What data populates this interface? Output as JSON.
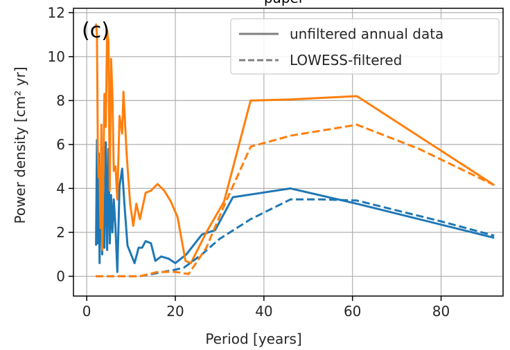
{
  "chart_data": {
    "type": "line",
    "title": "",
    "title_partial": "paper",
    "panel_label": "(c)",
    "xlabel": "Period [years]",
    "ylabel": "Power density [cm² yr]",
    "xlim": [
      -3,
      94
    ],
    "ylim": [
      -0.9,
      12.2
    ],
    "xticks": [
      0,
      20,
      40,
      60,
      80
    ],
    "yticks": [
      0,
      2,
      4,
      6,
      8,
      10,
      12
    ],
    "grid": true,
    "legend": {
      "placement": "top-right",
      "entries": [
        {
          "label": "unfiltered annual data",
          "style": "solid"
        },
        {
          "label": "LOWESS-filtered",
          "style": "dashed"
        }
      ]
    },
    "colors": {
      "blue": "#1f77b4",
      "orange": "#ff7f0e",
      "legend_line": "#7f7f7f",
      "grid": "#b0b0b0"
    },
    "series": [
      {
        "color": "blue",
        "style": "solid",
        "points": [
          [
            2.1,
            1.4
          ],
          [
            2.3,
            6.2
          ],
          [
            2.5,
            1.5
          ],
          [
            2.7,
            5.6
          ],
          [
            2.9,
            0.6
          ],
          [
            3.1,
            4.4
          ],
          [
            3.3,
            3.0
          ],
          [
            3.5,
            1.0
          ],
          [
            3.7,
            3.8
          ],
          [
            4.0,
            1.3
          ],
          [
            4.3,
            6.1
          ],
          [
            4.6,
            1.2
          ],
          [
            4.9,
            5.8
          ],
          [
            5.2,
            1.5
          ],
          [
            5.5,
            3.7
          ],
          [
            5.8,
            2.0
          ],
          [
            6.1,
            3.5
          ],
          [
            6.5,
            2.2
          ],
          [
            6.9,
            0.2
          ],
          [
            7.4,
            4.1
          ],
          [
            8.0,
            4.9
          ],
          [
            8.5,
            3.3
          ],
          [
            9.2,
            1.4
          ],
          [
            10.0,
            1.0
          ],
          [
            10.8,
            0.6
          ],
          [
            11.7,
            1.3
          ],
          [
            12.5,
            1.3
          ],
          [
            13.3,
            1.6
          ],
          [
            14.5,
            1.5
          ],
          [
            15.5,
            0.7
          ],
          [
            16.8,
            0.9
          ],
          [
            18.5,
            0.8
          ],
          [
            20.0,
            0.6
          ],
          [
            22.5,
            1.0
          ],
          [
            26.0,
            1.9
          ],
          [
            29.0,
            2.1
          ],
          [
            33.0,
            3.6
          ],
          [
            46.0,
            4.0
          ],
          [
            61.0,
            3.3
          ],
          [
            92.0,
            1.75
          ]
        ]
      },
      {
        "color": "orange",
        "style": "solid",
        "points": [
          [
            2.1,
            11.5
          ],
          [
            2.3,
            11.0
          ],
          [
            2.5,
            5.8
          ],
          [
            2.7,
            4.5
          ],
          [
            2.9,
            5.0
          ],
          [
            3.1,
            2.2
          ],
          [
            3.3,
            6.9
          ],
          [
            3.5,
            1.2
          ],
          [
            3.7,
            4.0
          ],
          [
            4.0,
            8.3
          ],
          [
            4.3,
            6.8
          ],
          [
            4.6,
            11.2
          ],
          [
            4.9,
            10.7
          ],
          [
            5.2,
            3.9
          ],
          [
            5.5,
            9.9
          ],
          [
            5.8,
            8.3
          ],
          [
            6.1,
            4.8
          ],
          [
            6.5,
            5.0
          ],
          [
            6.9,
            3.5
          ],
          [
            7.4,
            7.3
          ],
          [
            8.0,
            6.5
          ],
          [
            8.3,
            8.4
          ],
          [
            9.0,
            5.6
          ],
          [
            9.8,
            3.3
          ],
          [
            10.5,
            2.3
          ],
          [
            11.2,
            3.3
          ],
          [
            12.0,
            2.6
          ],
          [
            13.3,
            3.8
          ],
          [
            14.5,
            3.9
          ],
          [
            16.0,
            4.2
          ],
          [
            17.5,
            3.9
          ],
          [
            19.0,
            3.4
          ],
          [
            20.5,
            2.7
          ],
          [
            22.3,
            0.7
          ],
          [
            23.5,
            0.6
          ],
          [
            27.0,
            2.0
          ],
          [
            31.0,
            3.4
          ],
          [
            37.0,
            8.0
          ],
          [
            46.0,
            8.05
          ],
          [
            61.0,
            8.2
          ],
          [
            92.0,
            4.15
          ]
        ]
      },
      {
        "color": "blue",
        "style": "dashed",
        "points": [
          [
            2.0,
            0.0
          ],
          [
            8.0,
            0.0
          ],
          [
            12.0,
            0.0
          ],
          [
            16.0,
            0.15
          ],
          [
            20.0,
            0.3
          ],
          [
            22.0,
            0.4
          ],
          [
            26.0,
            1.0
          ],
          [
            30.0,
            1.7
          ],
          [
            37.0,
            2.6
          ],
          [
            46.0,
            3.5
          ],
          [
            53.0,
            3.5
          ],
          [
            61.0,
            3.45
          ],
          [
            70.0,
            3.0
          ],
          [
            80.0,
            2.5
          ],
          [
            92.0,
            1.85
          ]
        ]
      },
      {
        "color": "orange",
        "style": "dashed",
        "points": [
          [
            2.0,
            0.0
          ],
          [
            12.0,
            0.0
          ],
          [
            16.0,
            0.2
          ],
          [
            20.0,
            0.2
          ],
          [
            23.0,
            0.1
          ],
          [
            27.0,
            1.3
          ],
          [
            31.0,
            3.2
          ],
          [
            37.0,
            5.9
          ],
          [
            46.0,
            6.4
          ],
          [
            61.0,
            6.9
          ],
          [
            75.0,
            5.8
          ],
          [
            92.0,
            4.15
          ]
        ]
      }
    ]
  }
}
